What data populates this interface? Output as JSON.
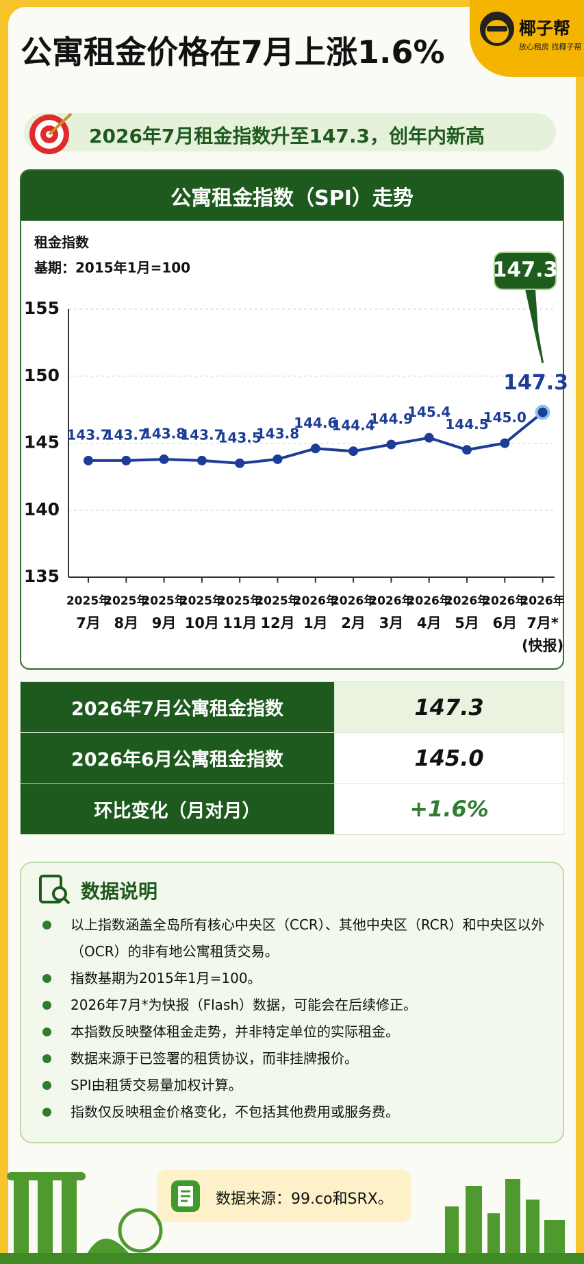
{
  "header": {
    "title": "公寓租金价格在7月上涨1.6%",
    "logo_name": "椰子帮",
    "logo_tagline": "放心租房 找椰子帮"
  },
  "subtitle": "2026年7月租金指数升至147.3，创年内新高",
  "chart_data": {
    "type": "line",
    "title": "公寓租金指数（SPI）走势",
    "y_label": [
      "租金指数",
      "基期：2015年1月=100"
    ],
    "categories": [
      [
        "2025年",
        "7月"
      ],
      [
        "2025年",
        "8月"
      ],
      [
        "2025年",
        "9月"
      ],
      [
        "2025年",
        "10月"
      ],
      [
        "2025年",
        "11月"
      ],
      [
        "2025年",
        "12月"
      ],
      [
        "2026年",
        "1月"
      ],
      [
        "2026年",
        "2月"
      ],
      [
        "2026年",
        "3月"
      ],
      [
        "2026年",
        "4月"
      ],
      [
        "2026年",
        "5月"
      ],
      [
        "2026年",
        "6月"
      ],
      [
        "2026年",
        "7月*",
        "(快报)"
      ]
    ],
    "values": [
      143.7,
      143.7,
      143.8,
      143.7,
      143.5,
      143.8,
      144.6,
      144.4,
      144.9,
      145.4,
      144.5,
      145,
      147.3
    ],
    "value_labels": [
      "143.7",
      "143.7",
      "143.8",
      "143.7",
      "143.5",
      "143.8",
      "144.6",
      "144.4",
      "144.9",
      "145.4",
      "144.5",
      "145.0",
      "147.3"
    ],
    "color": "#1c3c96",
    "highlight_color": "#1e5c1e",
    "ylim": [
      135,
      155
    ],
    "yticks": [
      135,
      140,
      145,
      150,
      155
    ],
    "grid": true
  },
  "table": {
    "rows": [
      [
        "2026年7月公寓租金指数",
        "147.3"
      ],
      [
        "2026年6月公寓租金指数",
        "145.0"
      ],
      [
        "环比变化（月对月）",
        "+1.6%"
      ]
    ]
  },
  "notes": {
    "title": "数据说明",
    "items": [
      "以上指数涵盖全岛所有核心中央区（CCR）、其他中央区（RCR）和中央区以外（OCR）的非有地公寓租赁交易。",
      "指数基期为2015年1月=100。",
      "2026年7月*为快报（Flash）数据，可能会在后续修正。",
      "本指数反映整体租金走势，并非特定单位的实际租金。",
      "数据来源于已签署的租赁协议，而非挂牌报价。",
      "SPI由租赁交易量加权计算。",
      "指数仅反映租金价格变化，不包括其他费用或服务费。"
    ]
  },
  "footer": {
    "source": "数据来源：99.co和SRX。"
  }
}
